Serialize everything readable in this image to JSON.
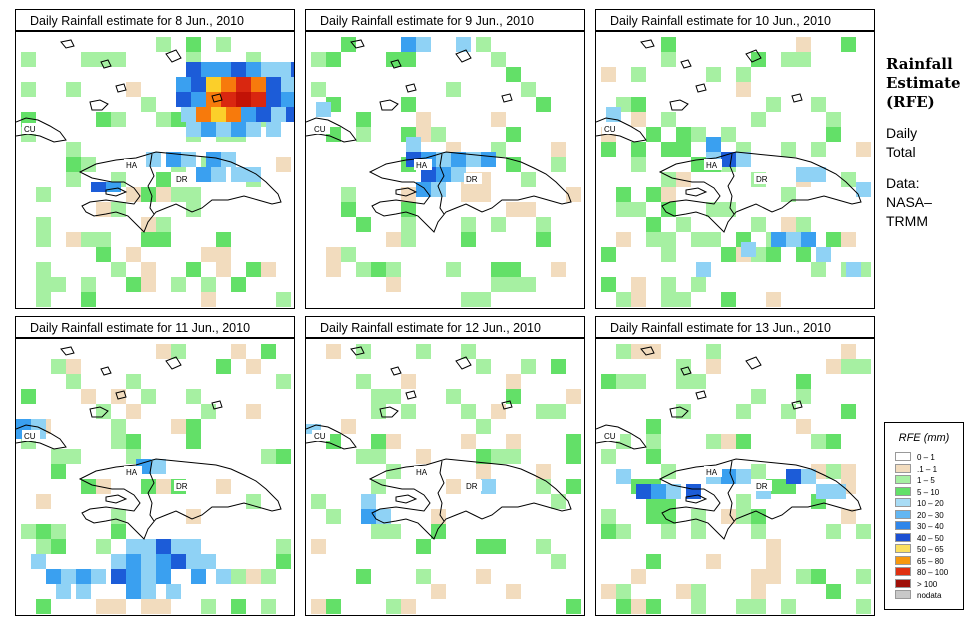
{
  "panels": [
    {
      "title": "Daily Rainfall estimate for  8 Jun., 2010",
      "seed": 11,
      "cells": [
        [
          170,
          30,
          15,
          15,
          "#1c5cd8"
        ],
        [
          185,
          30,
          15,
          15,
          "#3aa0f0"
        ],
        [
          200,
          30,
          15,
          15,
          "#3aa0f0"
        ],
        [
          215,
          30,
          15,
          15,
          "#1c5cd8"
        ],
        [
          230,
          30,
          15,
          15,
          "#3aa0f0"
        ],
        [
          245,
          30,
          15,
          15,
          "#8fd2f5"
        ],
        [
          260,
          30,
          15,
          15,
          "#8fd2f5"
        ],
        [
          275,
          30,
          5,
          15,
          "#1c5cd8"
        ],
        [
          160,
          45,
          15,
          15,
          "#3aa0f0"
        ],
        [
          175,
          45,
          15,
          15,
          "#1c5cd8"
        ],
        [
          190,
          45,
          15,
          15,
          "#fbcf2a"
        ],
        [
          205,
          45,
          15,
          15,
          "#f77a0c"
        ],
        [
          220,
          45,
          15,
          15,
          "#d92710"
        ],
        [
          235,
          45,
          15,
          15,
          "#f77a0c"
        ],
        [
          250,
          45,
          15,
          15,
          "#1c5cd8"
        ],
        [
          265,
          45,
          15,
          15,
          "#8fd2f5"
        ],
        [
          160,
          60,
          15,
          15,
          "#1c5cd8"
        ],
        [
          175,
          60,
          15,
          15,
          "#3aa0f0"
        ],
        [
          190,
          60,
          15,
          15,
          "#f77a0c"
        ],
        [
          205,
          60,
          15,
          15,
          "#d92710"
        ],
        [
          220,
          60,
          15,
          15,
          "#c21206"
        ],
        [
          235,
          60,
          15,
          15,
          "#d92710"
        ],
        [
          250,
          60,
          15,
          15,
          "#1c5cd8"
        ],
        [
          265,
          60,
          15,
          15,
          "#3aa0f0"
        ],
        [
          165,
          75,
          15,
          15,
          "#8fd2f5"
        ],
        [
          180,
          75,
          15,
          15,
          "#f77a0c"
        ],
        [
          195,
          75,
          15,
          15,
          "#fbcf2a"
        ],
        [
          210,
          75,
          15,
          15,
          "#f77a0c"
        ],
        [
          225,
          75,
          15,
          15,
          "#3aa0f0"
        ],
        [
          240,
          75,
          15,
          15,
          "#1c5cd8"
        ],
        [
          255,
          75,
          15,
          15,
          "#8fd2f5"
        ],
        [
          270,
          75,
          10,
          15,
          "#1c5cd8"
        ],
        [
          170,
          90,
          15,
          15,
          "#8fd2f5"
        ],
        [
          185,
          90,
          15,
          15,
          "#3aa0f0"
        ],
        [
          200,
          90,
          15,
          15,
          "#8fd2f5"
        ],
        [
          215,
          90,
          15,
          15,
          "#3aa0f0"
        ],
        [
          230,
          90,
          15,
          15,
          "#8fd2f5"
        ],
        [
          250,
          90,
          15,
          15,
          "#8fd2f5"
        ],
        [
          130,
          120,
          15,
          15,
          "#8fd2f5"
        ],
        [
          150,
          120,
          15,
          15,
          "#3aa0f0"
        ],
        [
          165,
          120,
          15,
          15,
          "#8fd2f5"
        ],
        [
          190,
          120,
          15,
          15,
          "#3aa0f0"
        ],
        [
          205,
          120,
          15,
          15,
          "#8fd2f5"
        ],
        [
          75,
          150,
          15,
          10,
          "#1c5cd8"
        ],
        [
          90,
          150,
          15,
          10,
          "#3aa0f0"
        ],
        [
          180,
          135,
          15,
          15,
          "#3aa0f0"
        ],
        [
          195,
          135,
          15,
          15,
          "#8fd2f5"
        ],
        [
          215,
          135,
          15,
          15,
          "#8fd2f5"
        ],
        [
          230,
          135,
          15,
          15,
          "#8fd2f5"
        ]
      ]
    },
    {
      "title": "Daily Rainfall estimate for  9 Jun., 2010",
      "seed": 23,
      "cells": [
        [
          95,
          5,
          15,
          15,
          "#3aa0f0"
        ],
        [
          110,
          5,
          15,
          15,
          "#8fd2f5"
        ],
        [
          150,
          5,
          15,
          15,
          "#8fd2f5"
        ],
        [
          100,
          120,
          15,
          15,
          "#1c5cd8"
        ],
        [
          115,
          120,
          15,
          15,
          "#3aa0f0"
        ],
        [
          115,
          135,
          15,
          15,
          "#1c5cd8"
        ],
        [
          130,
          135,
          15,
          15,
          "#3aa0f0"
        ],
        [
          145,
          120,
          15,
          15,
          "#3aa0f0"
        ],
        [
          160,
          120,
          15,
          15,
          "#8fd2f5"
        ],
        [
          130,
          120,
          15,
          15,
          "#8fd2f5"
        ],
        [
          110,
          150,
          15,
          15,
          "#3aa0f0"
        ],
        [
          125,
          150,
          15,
          15,
          "#8fd2f5"
        ],
        [
          100,
          105,
          15,
          15,
          "#8fd2f5"
        ],
        [
          145,
          135,
          15,
          15,
          "#8fd2f5"
        ],
        [
          175,
          120,
          15,
          15,
          "#3aa0f0"
        ],
        [
          10,
          70,
          15,
          15,
          "#8fd2f5"
        ]
      ]
    },
    {
      "title": "Daily Rainfall estimate for  10 Jun., 2010",
      "seed": 37,
      "cells": [
        [
          10,
          75,
          15,
          15,
          "#8fd2f5"
        ],
        [
          110,
          105,
          15,
          15,
          "#3aa0f0"
        ],
        [
          125,
          120,
          15,
          15,
          "#1c5cd8"
        ],
        [
          140,
          120,
          15,
          15,
          "#8fd2f5"
        ],
        [
          110,
          120,
          15,
          15,
          "#8fd2f5"
        ],
        [
          200,
          135,
          15,
          15,
          "#8fd2f5"
        ],
        [
          215,
          135,
          15,
          15,
          "#8fd2f5"
        ],
        [
          260,
          150,
          15,
          15,
          "#8fd2f5"
        ],
        [
          175,
          200,
          15,
          15,
          "#3aa0f0"
        ],
        [
          190,
          200,
          15,
          15,
          "#8fd2f5"
        ],
        [
          205,
          200,
          15,
          15,
          "#3aa0f0"
        ],
        [
          145,
          210,
          15,
          15,
          "#8fd2f5"
        ],
        [
          220,
          215,
          15,
          15,
          "#8fd2f5"
        ],
        [
          100,
          230,
          15,
          15,
          "#8fd2f5"
        ],
        [
          250,
          230,
          15,
          15,
          "#8fd2f5"
        ]
      ]
    },
    {
      "title": "Daily Rainfall estimate for  11 Jun., 2010",
      "seed": 53,
      "cells": [
        [
          0,
          80,
          15,
          20,
          "#3aa0f0"
        ],
        [
          15,
          80,
          15,
          20,
          "#8fd2f5"
        ],
        [
          120,
          120,
          15,
          15,
          "#3aa0f0"
        ],
        [
          135,
          120,
          15,
          15,
          "#8fd2f5"
        ],
        [
          110,
          200,
          15,
          15,
          "#8fd2f5"
        ],
        [
          125,
          200,
          15,
          15,
          "#8fd2f5"
        ],
        [
          140,
          200,
          15,
          15,
          "#1c5cd8"
        ],
        [
          155,
          200,
          15,
          15,
          "#8fd2f5"
        ],
        [
          170,
          200,
          15,
          15,
          "#8fd2f5"
        ],
        [
          95,
          215,
          15,
          15,
          "#8fd2f5"
        ],
        [
          110,
          215,
          15,
          15,
          "#3aa0f0"
        ],
        [
          125,
          215,
          15,
          15,
          "#8fd2f5"
        ],
        [
          140,
          215,
          15,
          15,
          "#3aa0f0"
        ],
        [
          155,
          215,
          15,
          15,
          "#1c5cd8"
        ],
        [
          170,
          215,
          15,
          15,
          "#8fd2f5"
        ],
        [
          185,
          215,
          15,
          15,
          "#8fd2f5"
        ],
        [
          30,
          230,
          15,
          15,
          "#3aa0f0"
        ],
        [
          45,
          230,
          15,
          15,
          "#8fd2f5"
        ],
        [
          60,
          230,
          15,
          15,
          "#3aa0f0"
        ],
        [
          75,
          230,
          15,
          15,
          "#8fd2f5"
        ],
        [
          95,
          230,
          15,
          15,
          "#1c5cd8"
        ],
        [
          110,
          230,
          15,
          15,
          "#3aa0f0"
        ],
        [
          125,
          230,
          15,
          15,
          "#8fd2f5"
        ],
        [
          140,
          230,
          15,
          15,
          "#3aa0f0"
        ],
        [
          175,
          230,
          15,
          15,
          "#3aa0f0"
        ],
        [
          40,
          245,
          15,
          15,
          "#8fd2f5"
        ],
        [
          60,
          245,
          15,
          15,
          "#8fd2f5"
        ],
        [
          110,
          245,
          15,
          15,
          "#3aa0f0"
        ],
        [
          125,
          245,
          15,
          15,
          "#8fd2f5"
        ],
        [
          150,
          245,
          15,
          15,
          "#8fd2f5"
        ],
        [
          15,
          215,
          15,
          15,
          "#8fd2f5"
        ],
        [
          200,
          230,
          15,
          15,
          "#8fd2f5"
        ]
      ]
    },
    {
      "title": "Daily Rainfall estimate for  12 Jun., 2010",
      "seed": 71,
      "cells": [
        [
          0,
          85,
          15,
          10,
          "#8fd2f5"
        ],
        [
          55,
          170,
          15,
          15,
          "#3aa0f0"
        ],
        [
          70,
          170,
          15,
          15,
          "#8fd2f5"
        ],
        [
          55,
          155,
          15,
          15,
          "#8fd2f5"
        ],
        [
          175,
          140,
          15,
          15,
          "#8fd2f5"
        ]
      ]
    },
    {
      "title": "Daily Rainfall estimate for  13 Jun., 2010",
      "seed": 89,
      "cells": [
        [
          40,
          145,
          15,
          15,
          "#1c5cd8"
        ],
        [
          55,
          145,
          15,
          15,
          "#3aa0f0"
        ],
        [
          70,
          145,
          15,
          15,
          "#8fd2f5"
        ],
        [
          90,
          145,
          15,
          15,
          "#1c5cd8"
        ],
        [
          110,
          130,
          15,
          15,
          "#8fd2f5"
        ],
        [
          125,
          130,
          15,
          15,
          "#3aa0f0"
        ],
        [
          140,
          130,
          15,
          15,
          "#8fd2f5"
        ],
        [
          190,
          130,
          15,
          15,
          "#1c5cd8"
        ],
        [
          205,
          130,
          15,
          15,
          "#8fd2f5"
        ],
        [
          220,
          145,
          15,
          15,
          "#8fd2f5"
        ],
        [
          235,
          145,
          15,
          15,
          "#8fd2f5"
        ],
        [
          20,
          130,
          15,
          15,
          "#8fd2f5"
        ],
        [
          160,
          145,
          15,
          15,
          "#8fd2f5"
        ]
      ]
    }
  ],
  "map_labels": {
    "cu": "CU",
    "ha": "HA",
    "dr": "DR"
  },
  "side": {
    "title_1": "Rainfall",
    "title_2": "Estimate",
    "title_3": "(RFE)",
    "line_1": "Daily",
    "line_2": "Total",
    "line_3": "Data:",
    "line_4": "NASA–",
    "line_5": "TRMM"
  },
  "legend": {
    "title": "RFE (mm)",
    "items": [
      {
        "label": "0 – 1",
        "color": "#ffffff"
      },
      {
        "label": ".1 – 1",
        "color": "#f2dcbe"
      },
      {
        "label": "1 – 5",
        "color": "#a6f0a2"
      },
      {
        "label": "5 – 10",
        "color": "#63e068"
      },
      {
        "label": "10 – 20",
        "color": "#a8dcf5"
      },
      {
        "label": "20 – 30",
        "color": "#62b6f2"
      },
      {
        "label": "30 – 40",
        "color": "#2f86ea"
      },
      {
        "label": "40 – 50",
        "color": "#1c4fd2"
      },
      {
        "label": "50 – 65",
        "color": "#fbe060"
      },
      {
        "label": "65 – 80",
        "color": "#f7980e"
      },
      {
        "label": "80 – 100",
        "color": "#e03010"
      },
      {
        "label": "> 100",
        "color": "#a01008"
      },
      {
        "label": "nodata",
        "color": "#c8c8c8"
      }
    ]
  }
}
